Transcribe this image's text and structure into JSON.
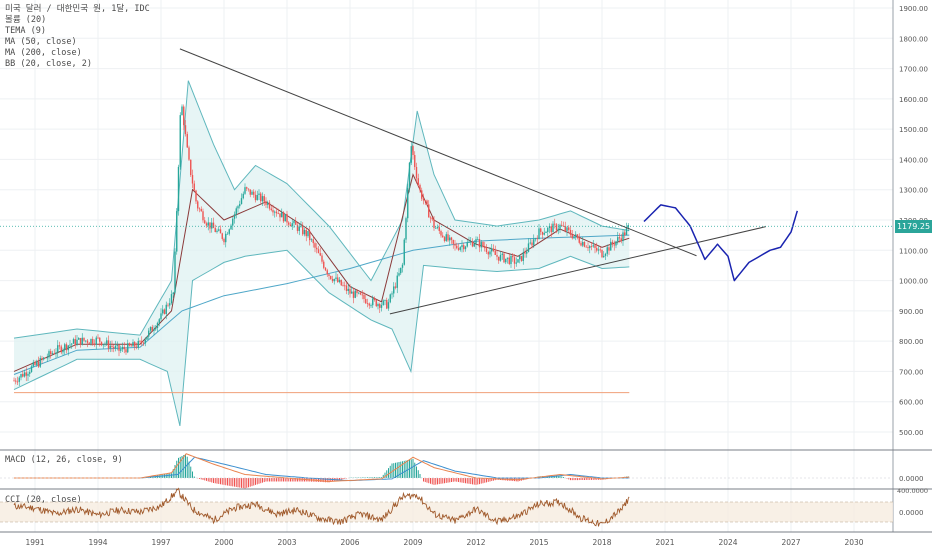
{
  "legend": {
    "title": "미국 달러 / 대한민국 원, 1달, IDC",
    "volume": "볼륨 (20)",
    "tema": "TEMA (9)",
    "ma50": "MA (50, close)",
    "ma200": "MA (200, close)",
    "bb": "BB (20, close, 2)"
  },
  "macd_label": "MACD (12, 26, close, 9)",
  "cci_label": "CCI (20, close)",
  "last_price": "1179.25",
  "colors": {
    "up": "#26a69a",
    "down": "#ef5350",
    "bb_line": "#5fb7bd",
    "bb_fill": "#dff1f2",
    "ma": "#8b3a3a",
    "ma_long": "#4fa7c8",
    "trendline": "#444444",
    "support": "#f0a07a",
    "projection": "#1a24b0",
    "cci": "#a05a2c",
    "macd_line": "#e9844f",
    "signal_line": "#3c8fcf"
  },
  "chart_data": {
    "type": "candlestick",
    "interval": "1M",
    "x_ticks": [
      "1991",
      "1994",
      "1997",
      "2000",
      "2003",
      "2006",
      "2009",
      "2012",
      "2015",
      "2018",
      "2021",
      "2024",
      "2027",
      "2030"
    ],
    "y_ticks": [
      "500.00",
      "600.00",
      "700.00",
      "800.00",
      "900.00",
      "1000.00",
      "1100.00",
      "1200.00",
      "1300.00",
      "1400.00",
      "1500.00",
      "1600.00",
      "1700.00",
      "1800.00",
      "1900.00"
    ],
    "ylim": [
      430,
      1915
    ],
    "price_path": [
      [
        1990.0,
        670
      ],
      [
        1991.0,
        720
      ],
      [
        1992.0,
        770
      ],
      [
        1993.0,
        800
      ],
      [
        1994.0,
        805
      ],
      [
        1995.0,
        770
      ],
      [
        1996.0,
        790
      ],
      [
        1997.0,
        880
      ],
      [
        1997.6,
        960
      ],
      [
        1997.95,
        1600
      ],
      [
        1998.3,
        1400
      ],
      [
        1998.7,
        1250
      ],
      [
        1999.2,
        1190
      ],
      [
        2000.0,
        1140
      ],
      [
        2001.0,
        1300
      ],
      [
        2002.0,
        1260
      ],
      [
        2003.0,
        1200
      ],
      [
        2004.0,
        1150
      ],
      [
        2005.0,
        1020
      ],
      [
        2006.0,
        960
      ],
      [
        2007.0,
        930
      ],
      [
        2007.8,
        920
      ],
      [
        2008.5,
        1050
      ],
      [
        2008.9,
        1450
      ],
      [
        2009.3,
        1300
      ],
      [
        2010.0,
        1180
      ],
      [
        2011.0,
        1110
      ],
      [
        2012.0,
        1130
      ],
      [
        2013.0,
        1080
      ],
      [
        2014.0,
        1060
      ],
      [
        2015.0,
        1160
      ],
      [
        2016.0,
        1180
      ],
      [
        2017.0,
        1130
      ],
      [
        2018.0,
        1090
      ],
      [
        2019.0,
        1150
      ],
      [
        2019.3,
        1179.25
      ]
    ],
    "bb_upper": [
      [
        1990.0,
        810
      ],
      [
        1993.0,
        840
      ],
      [
        1996.0,
        820
      ],
      [
        1997.5,
        1000
      ],
      [
        1998.3,
        1660
      ],
      [
        1999.5,
        1450
      ],
      [
        2000.5,
        1300
      ],
      [
        2001.5,
        1380
      ],
      [
        2003.0,
        1320
      ],
      [
        2005.0,
        1180
      ],
      [
        2007.0,
        1000
      ],
      [
        2008.5,
        1200
      ],
      [
        2009.2,
        1560
      ],
      [
        2010.0,
        1350
      ],
      [
        2011.0,
        1200
      ],
      [
        2013.0,
        1180
      ],
      [
        2015.0,
        1200
      ],
      [
        2016.5,
        1230
      ],
      [
        2018.0,
        1180
      ],
      [
        2019.3,
        1165
      ]
    ],
    "bb_lower": [
      [
        1990.0,
        640
      ],
      [
        1993.0,
        740
      ],
      [
        1996.0,
        740
      ],
      [
        1997.3,
        700
      ],
      [
        1997.9,
        520
      ],
      [
        1998.5,
        1000
      ],
      [
        2000.0,
        1060
      ],
      [
        2001.0,
        1080
      ],
      [
        2003.0,
        1100
      ],
      [
        2005.0,
        960
      ],
      [
        2007.0,
        870
      ],
      [
        2008.0,
        840
      ],
      [
        2008.9,
        700
      ],
      [
        2009.5,
        1050
      ],
      [
        2011.0,
        1040
      ],
      [
        2013.0,
        1030
      ],
      [
        2015.0,
        1040
      ],
      [
        2016.5,
        1080
      ],
      [
        2018.0,
        1040
      ],
      [
        2019.3,
        1045
      ]
    ],
    "ma_mid": [
      [
        1990.0,
        700
      ],
      [
        1993.0,
        790
      ],
      [
        1996.0,
        790
      ],
      [
        1997.5,
        900
      ],
      [
        1998.5,
        1300
      ],
      [
        2000.0,
        1200
      ],
      [
        2002.0,
        1260
      ],
      [
        2004.0,
        1170
      ],
      [
        2006.0,
        980
      ],
      [
        2007.5,
        930
      ],
      [
        2009.0,
        1350
      ],
      [
        2010.0,
        1200
      ],
      [
        2012.0,
        1120
      ],
      [
        2014.0,
        1080
      ],
      [
        2016.0,
        1170
      ],
      [
        2018.0,
        1110
      ],
      [
        2019.3,
        1140
      ]
    ],
    "ma_long": [
      [
        1990.0,
        690
      ],
      [
        1993.0,
        770
      ],
      [
        1996.0,
        780
      ],
      [
        1998.0,
        900
      ],
      [
        2000.0,
        950
      ],
      [
        2003.0,
        990
      ],
      [
        2006.0,
        1040
      ],
      [
        2009.0,
        1100
      ],
      [
        2012.0,
        1130
      ],
      [
        2015.0,
        1140
      ],
      [
        2019.3,
        1150
      ]
    ],
    "trendline_down": [
      [
        1997.9,
        1765
      ],
      [
        2022.5,
        1082
      ]
    ],
    "trendline_up": [
      [
        2007.9,
        890
      ],
      [
        2025.8,
        1178
      ]
    ],
    "support_line": [
      [
        1990.0,
        630
      ],
      [
        2019.3,
        630
      ]
    ],
    "projection": [
      [
        2020.0,
        1195
      ],
      [
        2020.8,
        1250
      ],
      [
        2021.5,
        1240
      ],
      [
        2022.2,
        1180
      ],
      [
        2022.9,
        1070
      ],
      [
        2023.5,
        1120
      ],
      [
        2024.0,
        1080
      ],
      [
        2024.3,
        1000
      ],
      [
        2025.0,
        1060
      ],
      [
        2026.0,
        1100
      ],
      [
        2026.5,
        1110
      ],
      [
        2027.0,
        1160
      ],
      [
        2027.3,
        1230
      ]
    ]
  },
  "macd": {
    "zero_label": "0.0000",
    "macd_line": [
      [
        1990.0,
        0
      ],
      [
        1996.0,
        0
      ],
      [
        1997.5,
        30
      ],
      [
        1998.2,
        140
      ],
      [
        1999.5,
        80
      ],
      [
        2001.0,
        20
      ],
      [
        2003.0,
        0
      ],
      [
        2005.0,
        -20
      ],
      [
        2007.5,
        -5
      ],
      [
        2009.0,
        120
      ],
      [
        2010.0,
        60
      ],
      [
        2012.0,
        0
      ],
      [
        2014.0,
        -10
      ],
      [
        2016.0,
        20
      ],
      [
        2018.0,
        -5
      ],
      [
        2019.3,
        5
      ]
    ],
    "signal_line": [
      [
        1990.0,
        0
      ],
      [
        1996.0,
        0
      ],
      [
        1997.8,
        20
      ],
      [
        1998.6,
        120
      ],
      [
        2000.0,
        80
      ],
      [
        2002.0,
        20
      ],
      [
        2004.0,
        0
      ],
      [
        2006.0,
        -15
      ],
      [
        2008.0,
        -5
      ],
      [
        2009.5,
        100
      ],
      [
        2011.0,
        40
      ],
      [
        2013.0,
        0
      ],
      [
        2015.0,
        0
      ],
      [
        2016.5,
        20
      ],
      [
        2018.0,
        0
      ],
      [
        2019.3,
        0
      ]
    ]
  },
  "cci": {
    "tick_high": "400.0000",
    "zero_label": "0.0000",
    "series": [
      [
        1990.0,
        60
      ],
      [
        1991.0,
        40
      ],
      [
        1992.0,
        -20
      ],
      [
        1993.0,
        30
      ],
      [
        1994.0,
        -30
      ],
      [
        1995.0,
        20
      ],
      [
        1996.0,
        0
      ],
      [
        1997.0,
        60
      ],
      [
        1997.8,
        210
      ],
      [
        1998.5,
        30
      ],
      [
        1999.5,
        -80
      ],
      [
        2000.5,
        40
      ],
      [
        2001.5,
        80
      ],
      [
        2002.5,
        -20
      ],
      [
        2003.5,
        20
      ],
      [
        2004.5,
        -60
      ],
      [
        2005.5,
        -100
      ],
      [
        2006.5,
        -20
      ],
      [
        2007.5,
        -80
      ],
      [
        2008.5,
        150
      ],
      [
        2009.2,
        170
      ],
      [
        2010.0,
        -20
      ],
      [
        2011.0,
        -90
      ],
      [
        2012.0,
        30
      ],
      [
        2013.0,
        -100
      ],
      [
        2014.0,
        -40
      ],
      [
        2015.0,
        80
      ],
      [
        2016.0,
        100
      ],
      [
        2017.0,
        -60
      ],
      [
        2018.0,
        -130
      ],
      [
        2019.0,
        40
      ],
      [
        2019.3,
        150
      ]
    ]
  }
}
